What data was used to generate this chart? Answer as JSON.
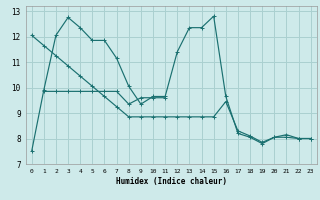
{
  "xlabel": "Humidex (Indice chaleur)",
  "ylabel": "",
  "background_color": "#ceeaea",
  "line_color": "#1a7070",
  "grid_color": "#aad0d0",
  "xlim": [
    -0.5,
    23.5
  ],
  "ylim": [
    7,
    13.2
  ],
  "xticks": [
    0,
    1,
    2,
    3,
    4,
    5,
    6,
    7,
    8,
    9,
    10,
    11,
    12,
    13,
    14,
    15,
    16,
    17,
    18,
    19,
    20,
    21,
    22,
    23
  ],
  "yticks": [
    7,
    8,
    9,
    10,
    11,
    12,
    13
  ],
  "line1_x": [
    0,
    1,
    2,
    3,
    4,
    5,
    6,
    7,
    8,
    9,
    10,
    11,
    12,
    13,
    14,
    15,
    16,
    17,
    18,
    19,
    20,
    21,
    22,
    23
  ],
  "line1_y": [
    7.5,
    9.9,
    12.05,
    12.75,
    12.35,
    11.85,
    11.85,
    11.15,
    10.05,
    9.35,
    9.65,
    9.65,
    11.4,
    12.35,
    12.35,
    12.8,
    9.65,
    8.2,
    8.05,
    7.8,
    8.05,
    8.15,
    8.0,
    8.0
  ],
  "line2_x": [
    1,
    2,
    3,
    4,
    5,
    6,
    7,
    8,
    9,
    10,
    11
  ],
  "line2_y": [
    9.85,
    9.85,
    9.85,
    9.85,
    9.85,
    9.85,
    9.85,
    9.35,
    9.6,
    9.6,
    9.6
  ],
  "line3_x": [
    0,
    1,
    2,
    3,
    4,
    5,
    6,
    7,
    8,
    9,
    10,
    11,
    12,
    13,
    14,
    15,
    16,
    17,
    18,
    19,
    20,
    21,
    22,
    23
  ],
  "line3_y": [
    12.05,
    11.65,
    11.25,
    10.85,
    10.45,
    10.05,
    9.65,
    9.25,
    8.85,
    8.85,
    8.85,
    8.85,
    8.85,
    8.85,
    8.85,
    8.85,
    9.45,
    8.3,
    8.1,
    7.85,
    8.05,
    8.05,
    8.0,
    8.0
  ]
}
